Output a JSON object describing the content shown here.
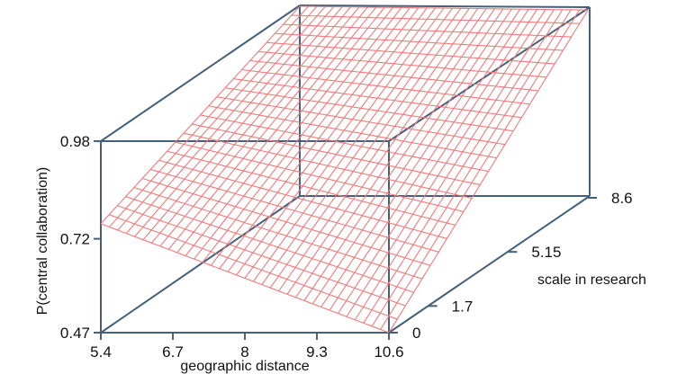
{
  "chart_data": {
    "type": "surface",
    "title": "",
    "xlabel": "geographic distance",
    "ylabel": "scale in research",
    "zlabel": "P(central collaboration)",
    "x_ticks": [
      "5.4",
      "6.7",
      "8",
      "9.3",
      "10.6"
    ],
    "y_ticks": [
      "0",
      "1.7",
      "5.15",
      "8.6"
    ],
    "z_ticks": [
      "0.47",
      "0.72",
      "0.98"
    ],
    "xlim": [
      5.4,
      10.6
    ],
    "ylim": [
      0,
      8.6
    ],
    "zlim": [
      0.47,
      0.98
    ],
    "surface_corners": [
      {
        "x": 5.4,
        "y": 0,
        "z": 0.76
      },
      {
        "x": 10.6,
        "y": 0,
        "z": 0.47
      },
      {
        "x": 5.4,
        "y": 8.6,
        "z": 0.98
      },
      {
        "x": 10.6,
        "y": 8.6,
        "z": 0.97
      }
    ],
    "grid_lines_x": 35,
    "grid_lines_y": 25,
    "grid": false,
    "colors": {
      "surface": "#f07a7a",
      "box": "#44607a"
    }
  }
}
